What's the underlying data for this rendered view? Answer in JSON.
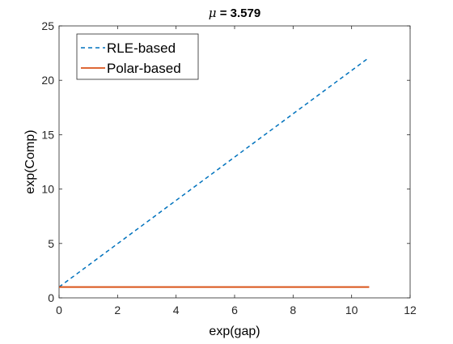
{
  "chart_data": {
    "type": "line",
    "title_prefix": "μ",
    "title_value": " = 3.579",
    "xlabel": "exp(gap)",
    "ylabel": "exp(Comp)",
    "xlim": [
      0,
      12
    ],
    "ylim": [
      0,
      25
    ],
    "xticks": [
      0,
      2,
      4,
      6,
      8,
      10,
      12
    ],
    "yticks": [
      0,
      5,
      10,
      15,
      20,
      25
    ],
    "grid": false,
    "legend_position": "top-left",
    "series": [
      {
        "name": "RLE-based",
        "color": "#0072BD",
        "line_style": "dashed",
        "x": [
          0,
          10.6
        ],
        "y": [
          1.0,
          22.1
        ]
      },
      {
        "name": "Polar-based",
        "color": "#D95319",
        "line_style": "solid",
        "x": [
          0,
          10.6
        ],
        "y": [
          1.0,
          1.0
        ]
      }
    ]
  }
}
